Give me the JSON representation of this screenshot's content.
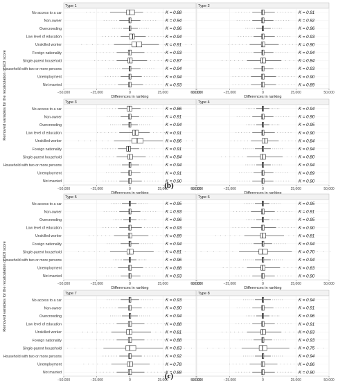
{
  "figure_labels": {
    "b": "(b)",
    "c": "(c)"
  },
  "chart_data": [
    {
      "group": "b",
      "type": "boxplot",
      "ylabel": "Removed variables for the recalculation of EDI score",
      "xlabel": "Differences in ranking",
      "xlim": [
        -50000,
        50000
      ],
      "xticks": [
        "−50,000",
        "−25,000",
        "0",
        "25,000",
        "50,000"
      ],
      "xtick_values": [
        -50000,
        -25000,
        0,
        25000,
        50000
      ],
      "grid": true,
      "categories": [
        "No access to a car",
        "Non-owner",
        "Overcrowding",
        "Low level of education",
        "Unskilled worker",
        "Foreign nationality",
        "Single-parent household",
        "Household with two or more persons",
        "Unemployment",
        "Not married"
      ],
      "panels": [
        {
          "title": "Type 1",
          "k_values": [
            "K = 0.88",
            "K = 0.94",
            "K = 0.96",
            "K = 0.94",
            "K = 0.91",
            "K = 0.93",
            "K = 0.87",
            "K = 0.94",
            "K = 0.94",
            "K = 0.93"
          ],
          "boxes": [
            [
              -15000,
              -2500,
              0,
              3500,
              10000
            ],
            [
              -8000,
              -800,
              0,
              900,
              8000
            ],
            [
              -5000,
              -600,
              0,
              800,
              6000
            ],
            [
              -7000,
              -500,
              2000,
              3500,
              12000
            ],
            [
              -12000,
              1500,
              5000,
              9000,
              22000
            ],
            [
              -10000,
              -1200,
              0,
              1200,
              11000
            ],
            [
              -10000,
              -1500,
              0,
              1800,
              13000
            ],
            [
              -6000,
              -600,
              0,
              800,
              8000
            ],
            [
              -7000,
              -800,
              0,
              900,
              9000
            ],
            [
              -9000,
              -1000,
              0,
              1000,
              10000
            ]
          ]
        },
        {
          "title": "Type 2",
          "k_values": [
            "K = 0.91",
            "K = 0.92",
            "K = 0.96",
            "K = 0.93",
            "K = 0.90",
            "K = 0.94",
            "K = 0.84",
            "K = 0.93",
            "K = 0.90",
            "K = 0.89"
          ],
          "boxes": [
            [
              -8000,
              -900,
              0,
              1000,
              9000
            ],
            [
              -8000,
              -900,
              0,
              900,
              8000
            ],
            [
              -5000,
              -500,
              0,
              600,
              6000
            ],
            [
              -7000,
              -900,
              0,
              1000,
              9000
            ],
            [
              -10000,
              -1200,
              0,
              1500,
              12000
            ],
            [
              -7000,
              -800,
              0,
              900,
              8000
            ],
            [
              -12000,
              -1600,
              0,
              2000,
              14000
            ],
            [
              -7000,
              -800,
              0,
              900,
              8000
            ],
            [
              -9000,
              -1000,
              0,
              1100,
              10000
            ],
            [
              -9000,
              -1100,
              0,
              1200,
              10000
            ]
          ]
        },
        {
          "title": "Type 3",
          "k_values": [
            "K = 0.86",
            "K = 0.91",
            "K = 0.94",
            "K = 0.91",
            "K = 0.86",
            "K = 0.91",
            "K = 0.84",
            "K = 0.94",
            "K = 0.91",
            "K = 0.90"
          ],
          "boxes": [
            [
              -9000,
              -2000,
              -500,
              1500,
              8000
            ],
            [
              -7000,
              -1000,
              0,
              1000,
              7000
            ],
            [
              -6000,
              -800,
              0,
              800,
              6000
            ],
            [
              -8000,
              2000,
              4000,
              6500,
              15000
            ],
            [
              -12000,
              1500,
              5500,
              10000,
              25000
            ],
            [
              -9000,
              -2500,
              -1000,
              500,
              7000
            ],
            [
              -10000,
              -1500,
              0,
              2000,
              12000
            ],
            [
              -6000,
              -700,
              0,
              800,
              7000
            ],
            [
              -7000,
              -900,
              0,
              1000,
              8000
            ],
            [
              -8000,
              -1000,
              0,
              1100,
              9000
            ]
          ]
        },
        {
          "title": "Type 4",
          "k_values": [
            "K = 0.94",
            "K = 0.90",
            "K = 0.95",
            "K = 0.90",
            "K = 0.84",
            "K = 0.94",
            "K = 0.80",
            "K = 0.94",
            "K = 0.89",
            "K = 0.90"
          ],
          "boxes": [
            [
              -5000,
              -500,
              0,
              500,
              5000
            ],
            [
              -8000,
              -900,
              0,
              1000,
              8000
            ],
            [
              -5000,
              -500,
              0,
              600,
              5000
            ],
            [
              -8000,
              -800,
              0,
              900,
              9000
            ],
            [
              -9000,
              -500,
              1500,
              3500,
              12000
            ],
            [
              -6000,
              -600,
              0,
              600,
              6000
            ],
            [
              -12000,
              -1800,
              0,
              2000,
              15000
            ],
            [
              -5000,
              -600,
              0,
              600,
              6000
            ],
            [
              -7000,
              -800,
              0,
              900,
              8000
            ],
            [
              -8000,
              -800,
              0,
              900,
              8000
            ]
          ]
        }
      ]
    },
    {
      "group": "c",
      "type": "boxplot",
      "ylabel": "Removed variables for the recalculation of EDI score",
      "xlabel": "Differences in ranking",
      "xlim": [
        -50000,
        50000
      ],
      "xticks": [
        "−50,000",
        "−25,000",
        "0",
        "25,000",
        "50,000"
      ],
      "xtick_values": [
        -50000,
        -25000,
        0,
        25000,
        50000
      ],
      "grid": true,
      "categories": [
        "No access to a car",
        "Non-owner",
        "Overcrowding",
        "Low level of education",
        "Unskilled worker",
        "Foreign nationality",
        "Single-parent household",
        "Household with two or more persons",
        "Unemployment",
        "Not married"
      ],
      "panels": [
        {
          "title": "Type 5",
          "k_values": [
            "K = 0.95",
            "K = 0.93",
            "K = 0.96",
            "K = 0.93",
            "K = 0.89",
            "K = 0.94",
            "K = 0.81",
            "K = 0.96",
            "K = 0.88",
            "K = 0.93"
          ],
          "boxes": [
            [
              -6000,
              -500,
              0,
              500,
              5000
            ],
            [
              -8000,
              -800,
              0,
              900,
              8000
            ],
            [
              -5000,
              -500,
              0,
              600,
              5000
            ],
            [
              -8000,
              -900,
              0,
              1000,
              9000
            ],
            [
              -12000,
              -1200,
              0,
              1500,
              14000
            ],
            [
              -7000,
              -700,
              0,
              800,
              7000
            ],
            [
              -15000,
              -2200,
              0,
              2500,
              18000
            ],
            [
              -5000,
              -500,
              0,
              500,
              5000
            ],
            [
              -9000,
              -1000,
              0,
              1200,
              10000
            ],
            [
              -7000,
              -800,
              0,
              900,
              8000
            ]
          ]
        },
        {
          "title": "Type 6",
          "k_values": [
            "K = 0.95",
            "K = 0.91",
            "K = 0.95",
            "K = 0.90",
            "K = 0.81",
            "K = 0.94",
            "K = 0.70",
            "K = 0.94",
            "K = 0.83",
            "K = 0.90"
          ],
          "boxes": [
            [
              -6000,
              -500,
              0,
              500,
              5000
            ],
            [
              -9000,
              -1000,
              0,
              1100,
              9000
            ],
            [
              -5000,
              -500,
              0,
              600,
              5000
            ],
            [
              -9000,
              -1000,
              0,
              1100,
              10000
            ],
            [
              -14000,
              -1800,
              0,
              2200,
              16000
            ],
            [
              -7000,
              -700,
              0,
              800,
              7000
            ],
            [
              -18000,
              -3000,
              0,
              3500,
              22000
            ],
            [
              -6000,
              -600,
              0,
              700,
              6000
            ],
            [
              -12000,
              -1500,
              0,
              1700,
              13000
            ],
            [
              -8000,
              -900,
              0,
              1000,
              9000
            ]
          ]
        },
        {
          "title": "Type 7",
          "k_values": [
            "K = 0.93",
            "K = 0.90",
            "K = 0.94",
            "K = 0.88",
            "K = 0.81",
            "K = 0.88",
            "K = 0.63",
            "K = 0.92",
            "K = 0.78",
            "K = 0.88"
          ],
          "boxes": [
            [
              -7000,
              -700,
              0,
              800,
              7000
            ],
            [
              -9000,
              -1000,
              0,
              1100,
              9000
            ],
            [
              -6000,
              -600,
              0,
              700,
              6000
            ],
            [
              -10000,
              -1200,
              0,
              1300,
              11000
            ],
            [
              -14000,
              -2500,
              -500,
              1500,
              16000
            ],
            [
              -10000,
              -1200,
              0,
              1300,
              11000
            ],
            [
              -20000,
              -3000,
              0,
              4500,
              25000
            ],
            [
              -8000,
              -900,
              0,
              1000,
              9000
            ],
            [
              -14000,
              -1800,
              0,
              2000,
              15000
            ],
            [
              -10000,
              -1200,
              0,
              1300,
              11000
            ]
          ]
        },
        {
          "title": "Type 8",
          "k_values": [
            "K = 0.94",
            "K = 0.91",
            "K = 0.96",
            "K = 0.91",
            "K = 0.83",
            "K = 0.93",
            "K = 0.75",
            "K = 0.94",
            "K = 0.86",
            "K = 0.90"
          ],
          "boxes": [
            [
              -6000,
              -600,
              0,
              600,
              6000
            ],
            [
              -8000,
              -900,
              0,
              1000,
              8000
            ],
            [
              -5000,
              -500,
              0,
              500,
              5000
            ],
            [
              -8000,
              -900,
              0,
              1000,
              9000
            ],
            [
              -12000,
              -1500,
              0,
              2000,
              14000
            ],
            [
              -7000,
              -800,
              0,
              800,
              7000
            ],
            [
              -16000,
              -2800,
              0,
              3000,
              20000
            ],
            [
              -6000,
              -600,
              0,
              700,
              6000
            ],
            [
              -10000,
              -1200,
              0,
              1300,
              11000
            ],
            [
              -8000,
              -900,
              0,
              1000,
              9000
            ]
          ]
        }
      ]
    }
  ]
}
